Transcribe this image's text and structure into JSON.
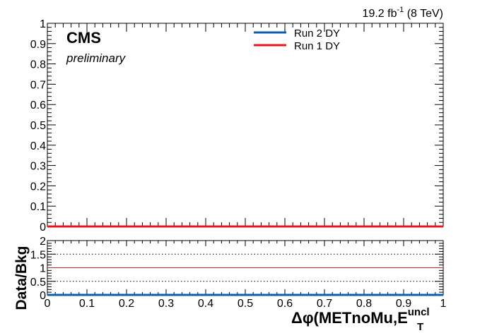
{
  "header": {
    "lumi_value": "19.2 fb",
    "lumi_exponent": "-1",
    "energy": " (8 TeV)",
    "experiment": "CMS",
    "status": "preliminary"
  },
  "legend": {
    "placement": "top-center",
    "entries": [
      {
        "label": "Run 2 DY",
        "color": "#0a5fad"
      },
      {
        "label": "Run 1 DY",
        "color": "#e8161e"
      }
    ]
  },
  "chart_data": [
    {
      "type": "line",
      "panel": "main",
      "xlim": [
        0,
        1
      ],
      "ylim": [
        0,
        1
      ],
      "y_ticks": [
        "0",
        "0.1",
        "0.2",
        "0.3",
        "0.4",
        "0.5",
        "0.6",
        "0.7",
        "0.8",
        "0.9",
        "1"
      ],
      "x": [
        0,
        1
      ],
      "series": [
        {
          "name": "Run 2 DY",
          "color": "#0a5fad",
          "values": [
            0,
            0
          ]
        },
        {
          "name": "Run 1 DY",
          "color": "#e8161e",
          "values": [
            0,
            0
          ]
        }
      ],
      "grid": false
    },
    {
      "type": "line",
      "panel": "ratio",
      "xlim": [
        0,
        1
      ],
      "ylim": [
        0,
        2
      ],
      "y_ticks": [
        "0",
        "0.5",
        "1",
        "1.5",
        "2"
      ],
      "x_ticks": [
        "0",
        "0.1",
        "0.2",
        "0.3",
        "0.4",
        "0.5",
        "0.6",
        "0.7",
        "0.8",
        "0.9",
        "1"
      ],
      "ylabel": "Data/Bkg",
      "xlabel_main": "Δφ(METnoMu,E",
      "xlabel_sub": "T",
      "xlabel_sup": "uncl",
      "reference_lines": [
        {
          "value": 0.5,
          "style": "dotted",
          "color": "#000000"
        },
        {
          "value": 1.0,
          "style": "solid",
          "color": "#c8262e"
        },
        {
          "value": 1.5,
          "style": "dotted",
          "color": "#000000"
        }
      ],
      "x": [
        0,
        1
      ],
      "series": [
        {
          "name": "Run 2 DY",
          "color": "#0a5fad",
          "values": [
            0,
            0
          ]
        }
      ]
    }
  ]
}
